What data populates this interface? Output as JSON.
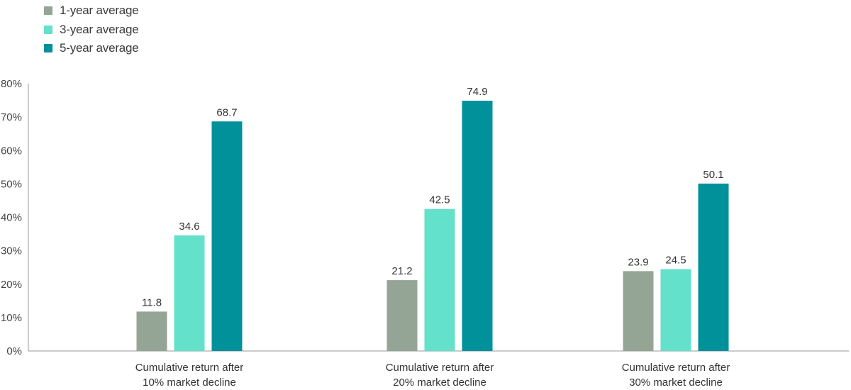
{
  "chart_data": {
    "type": "bar",
    "categories": [
      [
        "Cumulative return after",
        "10% market decline"
      ],
      [
        "Cumulative return after",
        "20% market decline"
      ],
      [
        "Cumulative return after",
        "30% market decline"
      ]
    ],
    "series": [
      {
        "name": "1-year average",
        "color": "#95a595",
        "values": [
          11.8,
          21.2,
          23.9
        ]
      },
      {
        "name": "3-year average",
        "color": "#63e1ca",
        "values": [
          34.6,
          42.5,
          24.5
        ]
      },
      {
        "name": "5-year average",
        "color": "#00919b",
        "values": [
          68.7,
          74.9,
          50.1
        ]
      }
    ],
    "yticks": [
      "0%",
      "10%",
      "20%",
      "30%",
      "40%",
      "50%",
      "60%",
      "70%",
      "80%"
    ],
    "ylim": [
      0,
      80
    ],
    "data_labels": [
      [
        "11.8",
        "21.2",
        "23.9"
      ],
      [
        "34.6",
        "42.5",
        "24.5"
      ],
      [
        "68.7",
        "74.9",
        "50.1"
      ]
    ],
    "legend_position": "top-left",
    "grid": false,
    "axis_color": "#9a9a9a"
  }
}
